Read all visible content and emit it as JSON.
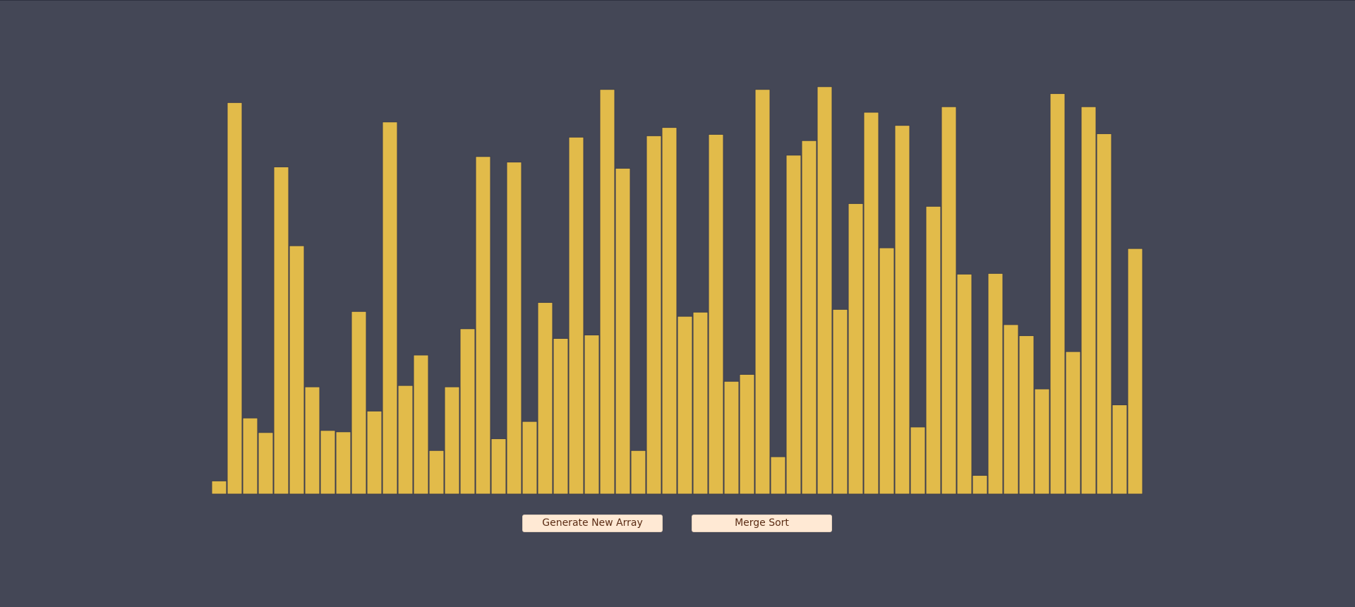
{
  "app": {
    "background_color": "#444756",
    "bar_color": "#e2bb4a",
    "bar_stroke_color": "#3d3e4d",
    "button_background": "#ffe9d4",
    "button_text_color": "#5a2c14"
  },
  "controls": {
    "generate_label": "Generate New Array",
    "sort_label": "Merge Sort"
  },
  "chart_data": {
    "type": "bar",
    "title": "",
    "xlabel": "",
    "ylabel": "",
    "values": [
      19,
      566,
      110,
      89,
      473,
      359,
      155,
      92,
      90,
      264,
      120,
      538,
      157,
      201,
      63,
      155,
      239,
      488,
      80,
      480,
      105,
      277,
      225,
      516,
      230,
      585,
      471,
      63,
      518,
      530,
      257,
      263,
      520,
      163,
      173,
      585,
      54,
      490,
      511,
      589,
      267,
      420,
      552,
      356,
      533,
      97,
      416,
      560,
      318,
      27,
      319,
      245,
      229,
      152,
      579,
      206,
      560,
      521,
      129,
      355
    ],
    "ylim": [
      0,
      600
    ]
  }
}
